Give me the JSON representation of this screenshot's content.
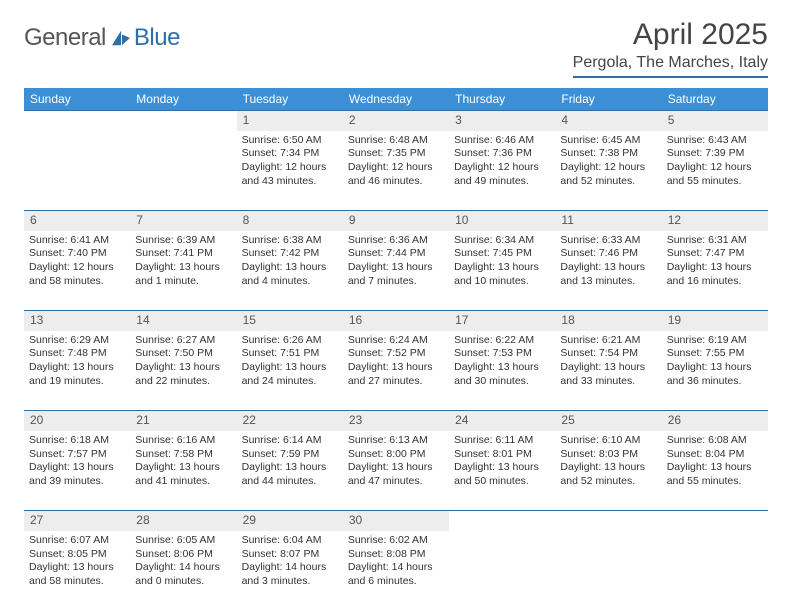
{
  "brand": {
    "part1": "General",
    "part2": "Blue"
  },
  "title": "April 2025",
  "location": "Pergola, The Marches, Italy",
  "colors": {
    "header_bg": "#3b8fd4",
    "header_text": "#ffffff",
    "accent_line": "#2f6fa8",
    "daynum_bg": "#ededed",
    "text": "#333333"
  },
  "day_headers": [
    "Sunday",
    "Monday",
    "Tuesday",
    "Wednesday",
    "Thursday",
    "Friday",
    "Saturday"
  ],
  "weeks": [
    {
      "nums": [
        "",
        "",
        "1",
        "2",
        "3",
        "4",
        "5"
      ],
      "cells": [
        null,
        null,
        {
          "sunrise": "Sunrise: 6:50 AM",
          "sunset": "Sunset: 7:34 PM",
          "day1": "Daylight: 12 hours",
          "day2": "and 43 minutes."
        },
        {
          "sunrise": "Sunrise: 6:48 AM",
          "sunset": "Sunset: 7:35 PM",
          "day1": "Daylight: 12 hours",
          "day2": "and 46 minutes."
        },
        {
          "sunrise": "Sunrise: 6:46 AM",
          "sunset": "Sunset: 7:36 PM",
          "day1": "Daylight: 12 hours",
          "day2": "and 49 minutes."
        },
        {
          "sunrise": "Sunrise: 6:45 AM",
          "sunset": "Sunset: 7:38 PM",
          "day1": "Daylight: 12 hours",
          "day2": "and 52 minutes."
        },
        {
          "sunrise": "Sunrise: 6:43 AM",
          "sunset": "Sunset: 7:39 PM",
          "day1": "Daylight: 12 hours",
          "day2": "and 55 minutes."
        }
      ]
    },
    {
      "nums": [
        "6",
        "7",
        "8",
        "9",
        "10",
        "11",
        "12"
      ],
      "cells": [
        {
          "sunrise": "Sunrise: 6:41 AM",
          "sunset": "Sunset: 7:40 PM",
          "day1": "Daylight: 12 hours",
          "day2": "and 58 minutes."
        },
        {
          "sunrise": "Sunrise: 6:39 AM",
          "sunset": "Sunset: 7:41 PM",
          "day1": "Daylight: 13 hours",
          "day2": "and 1 minute."
        },
        {
          "sunrise": "Sunrise: 6:38 AM",
          "sunset": "Sunset: 7:42 PM",
          "day1": "Daylight: 13 hours",
          "day2": "and 4 minutes."
        },
        {
          "sunrise": "Sunrise: 6:36 AM",
          "sunset": "Sunset: 7:44 PM",
          "day1": "Daylight: 13 hours",
          "day2": "and 7 minutes."
        },
        {
          "sunrise": "Sunrise: 6:34 AM",
          "sunset": "Sunset: 7:45 PM",
          "day1": "Daylight: 13 hours",
          "day2": "and 10 minutes."
        },
        {
          "sunrise": "Sunrise: 6:33 AM",
          "sunset": "Sunset: 7:46 PM",
          "day1": "Daylight: 13 hours",
          "day2": "and 13 minutes."
        },
        {
          "sunrise": "Sunrise: 6:31 AM",
          "sunset": "Sunset: 7:47 PM",
          "day1": "Daylight: 13 hours",
          "day2": "and 16 minutes."
        }
      ]
    },
    {
      "nums": [
        "13",
        "14",
        "15",
        "16",
        "17",
        "18",
        "19"
      ],
      "cells": [
        {
          "sunrise": "Sunrise: 6:29 AM",
          "sunset": "Sunset: 7:48 PM",
          "day1": "Daylight: 13 hours",
          "day2": "and 19 minutes."
        },
        {
          "sunrise": "Sunrise: 6:27 AM",
          "sunset": "Sunset: 7:50 PM",
          "day1": "Daylight: 13 hours",
          "day2": "and 22 minutes."
        },
        {
          "sunrise": "Sunrise: 6:26 AM",
          "sunset": "Sunset: 7:51 PM",
          "day1": "Daylight: 13 hours",
          "day2": "and 24 minutes."
        },
        {
          "sunrise": "Sunrise: 6:24 AM",
          "sunset": "Sunset: 7:52 PM",
          "day1": "Daylight: 13 hours",
          "day2": "and 27 minutes."
        },
        {
          "sunrise": "Sunrise: 6:22 AM",
          "sunset": "Sunset: 7:53 PM",
          "day1": "Daylight: 13 hours",
          "day2": "and 30 minutes."
        },
        {
          "sunrise": "Sunrise: 6:21 AM",
          "sunset": "Sunset: 7:54 PM",
          "day1": "Daylight: 13 hours",
          "day2": "and 33 minutes."
        },
        {
          "sunrise": "Sunrise: 6:19 AM",
          "sunset": "Sunset: 7:55 PM",
          "day1": "Daylight: 13 hours",
          "day2": "and 36 minutes."
        }
      ]
    },
    {
      "nums": [
        "20",
        "21",
        "22",
        "23",
        "24",
        "25",
        "26"
      ],
      "cells": [
        {
          "sunrise": "Sunrise: 6:18 AM",
          "sunset": "Sunset: 7:57 PM",
          "day1": "Daylight: 13 hours",
          "day2": "and 39 minutes."
        },
        {
          "sunrise": "Sunrise: 6:16 AM",
          "sunset": "Sunset: 7:58 PM",
          "day1": "Daylight: 13 hours",
          "day2": "and 41 minutes."
        },
        {
          "sunrise": "Sunrise: 6:14 AM",
          "sunset": "Sunset: 7:59 PM",
          "day1": "Daylight: 13 hours",
          "day2": "and 44 minutes."
        },
        {
          "sunrise": "Sunrise: 6:13 AM",
          "sunset": "Sunset: 8:00 PM",
          "day1": "Daylight: 13 hours",
          "day2": "and 47 minutes."
        },
        {
          "sunrise": "Sunrise: 6:11 AM",
          "sunset": "Sunset: 8:01 PM",
          "day1": "Daylight: 13 hours",
          "day2": "and 50 minutes."
        },
        {
          "sunrise": "Sunrise: 6:10 AM",
          "sunset": "Sunset: 8:03 PM",
          "day1": "Daylight: 13 hours",
          "day2": "and 52 minutes."
        },
        {
          "sunrise": "Sunrise: 6:08 AM",
          "sunset": "Sunset: 8:04 PM",
          "day1": "Daylight: 13 hours",
          "day2": "and 55 minutes."
        }
      ]
    },
    {
      "nums": [
        "27",
        "28",
        "29",
        "30",
        "",
        "",
        ""
      ],
      "cells": [
        {
          "sunrise": "Sunrise: 6:07 AM",
          "sunset": "Sunset: 8:05 PM",
          "day1": "Daylight: 13 hours",
          "day2": "and 58 minutes."
        },
        {
          "sunrise": "Sunrise: 6:05 AM",
          "sunset": "Sunset: 8:06 PM",
          "day1": "Daylight: 14 hours",
          "day2": "and 0 minutes."
        },
        {
          "sunrise": "Sunrise: 6:04 AM",
          "sunset": "Sunset: 8:07 PM",
          "day1": "Daylight: 14 hours",
          "day2": "and 3 minutes."
        },
        {
          "sunrise": "Sunrise: 6:02 AM",
          "sunset": "Sunset: 8:08 PM",
          "day1": "Daylight: 14 hours",
          "day2": "and 6 minutes."
        },
        null,
        null,
        null
      ]
    }
  ]
}
